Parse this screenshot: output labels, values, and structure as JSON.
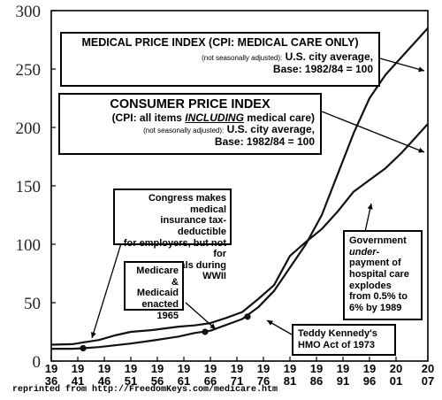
{
  "chart_data": {
    "type": "line",
    "xlim": [
      1936,
      2007
    ],
    "ylim": [
      0,
      300
    ],
    "y_ticks": [
      "0",
      "50",
      "100",
      "150",
      "200",
      "250",
      "300"
    ],
    "x_ticks": [
      {
        "year": 1936,
        "top": "19",
        "bottom": "36"
      },
      {
        "year": 1941,
        "top": "19",
        "bottom": "41"
      },
      {
        "year": 1946,
        "top": "19",
        "bottom": "46"
      },
      {
        "year": 1951,
        "top": "19",
        "bottom": "51"
      },
      {
        "year": 1956,
        "top": "19",
        "bottom": "56"
      },
      {
        "year": 1961,
        "top": "19",
        "bottom": "61"
      },
      {
        "year": 1966,
        "top": "19",
        "bottom": "66"
      },
      {
        "year": 1971,
        "top": "19",
        "bottom": "71"
      },
      {
        "year": 1976,
        "top": "19",
        "bottom": "76"
      },
      {
        "year": 1981,
        "top": "19",
        "bottom": "81"
      },
      {
        "year": 1986,
        "top": "19",
        "bottom": "86"
      },
      {
        "year": 1991,
        "top": "19",
        "bottom": "91"
      },
      {
        "year": 1996,
        "top": "19",
        "bottom": "96"
      },
      {
        "year": 2001,
        "top": "20",
        "bottom": "01"
      },
      {
        "year": 2007,
        "top": "20",
        "bottom": "07"
      }
    ],
    "grid": false,
    "series": [
      {
        "key": "medical",
        "x": [
          1936,
          1940,
          1942,
          1945,
          1948,
          1951,
          1955,
          1960,
          1963,
          1966,
          1969,
          1972,
          1975,
          1978,
          1981,
          1984,
          1987,
          1990,
          1993,
          1996,
          1999,
          2002,
          2005,
          2007
        ],
        "values": [
          10.5,
          10.5,
          11,
          12,
          13.5,
          15,
          17.5,
          21,
          24,
          26,
          31,
          36,
          46,
          60,
          80,
          100,
          125,
          160,
          195,
          225,
          245,
          260,
          275,
          285
        ]
      },
      {
        "key": "cpi",
        "x": [
          1936,
          1940,
          1942,
          1945,
          1948,
          1951,
          1955,
          1960,
          1963,
          1966,
          1969,
          1972,
          1975,
          1978,
          1981,
          1984,
          1987,
          1990,
          1993,
          1996,
          1999,
          2002,
          2005,
          2007
        ],
        "values": [
          14,
          14.5,
          16,
          18,
          22,
          25,
          26.5,
          29.5,
          30.5,
          32.5,
          37,
          42,
          53,
          65,
          90,
          102,
          113,
          128,
          145,
          155,
          165,
          178,
          193,
          203
        ]
      }
    ],
    "points": [
      {
        "x": 1942,
        "y": 11,
        "label": "wwii"
      },
      {
        "x": 1965,
        "y": 25,
        "label": "medicare"
      },
      {
        "x": 1973,
        "y": 38,
        "label": "hmo"
      }
    ],
    "annotations": {
      "medical_box": {
        "title": "MEDICAL PRICE INDEX (CPI: MEDICAL CARE ONLY)",
        "small": "(not seasonally adjusted):",
        "mid": "U.S. city average,",
        "base": "Base: 1982/84 = 100"
      },
      "cpi_box": {
        "title": "CONSUMER PRICE INDEX",
        "line2_pre": "(CPI: all items",
        "line2_em": "INCLUDING",
        "line2_post": "medical care)",
        "small": "(not seasonally adjusted):",
        "mid": "U.S. city average,",
        "base": "Base: 1982/84 = 100"
      },
      "congress": {
        "l1": "Congress makes medical",
        "l2": "insurance tax-deductible",
        "l3": "for employers, but not for",
        "l4": "individuals during WWII"
      },
      "medicare": {
        "l1": "Medicare &",
        "l2": "Medicaid",
        "l3": "enacted",
        "l4": "1965"
      },
      "government": {
        "l1": "Government",
        "l2": "under-",
        "l3": "payment of",
        "l4": "hospital care",
        "l5": "explodes",
        "l6": "from 0.5% to",
        "l7": "6% by 1989"
      },
      "hmo": {
        "l1": "Teddy Kennedy's",
        "l2": "HMO Act of 1973"
      }
    }
  },
  "footer": "reprinted from http://FreedomKeys.com/medicare.htm"
}
